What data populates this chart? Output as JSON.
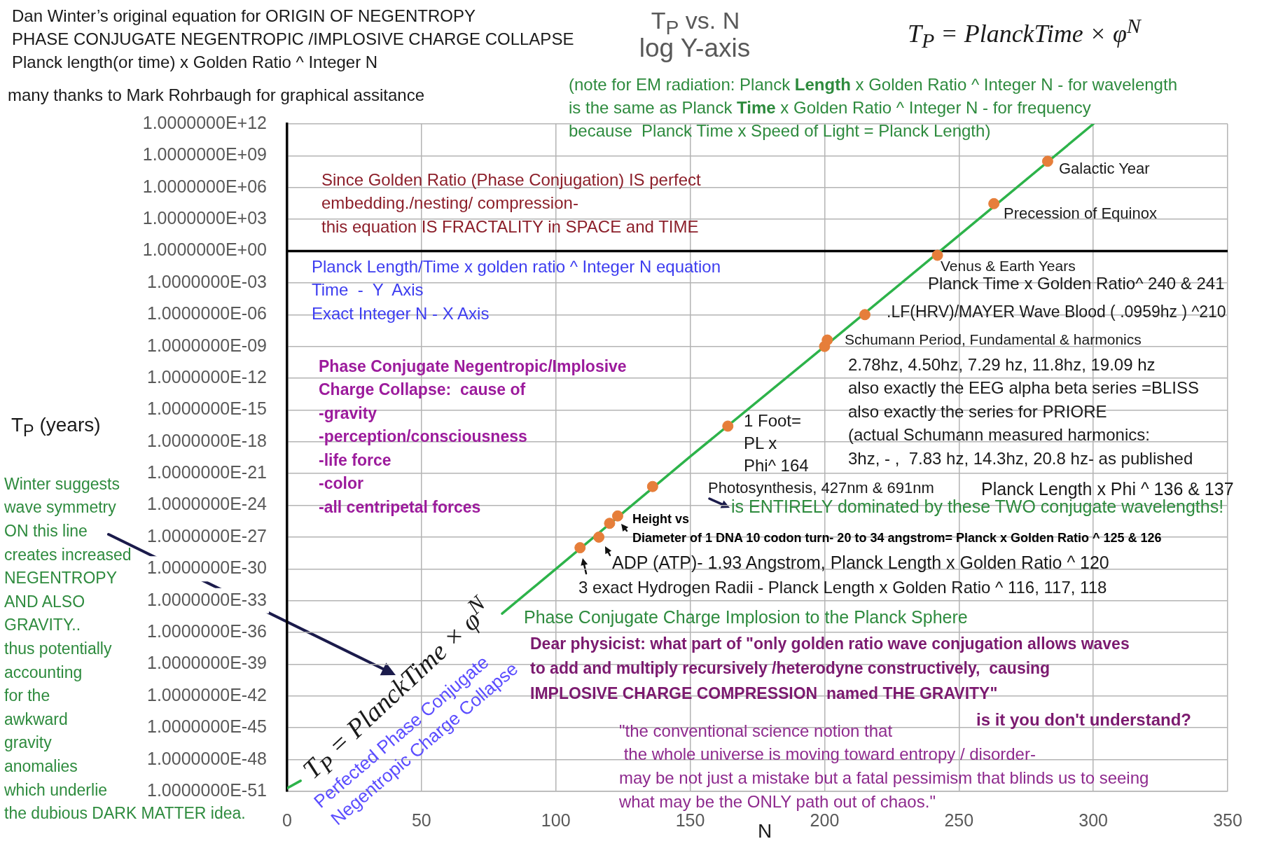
{
  "chart_data": {
    "type": "line",
    "title": "T$_{P}$ vs. N",
    "subtitle": "log Y-axis",
    "xlabel": "N",
    "ylabel": "T$_{P}$ (years)",
    "log": "y",
    "grid": true,
    "xlim": [
      0,
      350
    ],
    "xticks": [
      0,
      50,
      100,
      150,
      200,
      250,
      300,
      350
    ],
    "ylim": [
      1e-51,
      1000000000000.0
    ],
    "yticks": [
      {
        "value": 1000000000000.0,
        "label": "1.0000000E+12"
      },
      {
        "value": 1000000000.0,
        "label": "1.0000000E+09"
      },
      {
        "value": 1000000.0,
        "label": "1.0000000E+06"
      },
      {
        "value": 1000.0,
        "label": "1.0000000E+03"
      },
      {
        "value": 1,
        "label": "1.0000000E+00"
      },
      {
        "value": 0.001,
        "label": "1.0000000E-03"
      },
      {
        "value": 1e-06,
        "label": "1.0000000E-06"
      },
      {
        "value": 1e-09,
        "label": "1.0000000E-09"
      },
      {
        "value": 1e-12,
        "label": "1.0000000E-12"
      },
      {
        "value": 1e-15,
        "label": "1.0000000E-15"
      },
      {
        "value": 1e-18,
        "label": "1.0000000E-18"
      },
      {
        "value": 1e-21,
        "label": "1.0000000E-21"
      },
      {
        "value": 1e-24,
        "label": "1.0000000E-24"
      },
      {
        "value": 1e-27,
        "label": "1.0000000E-27"
      },
      {
        "value": 1e-30,
        "label": "1.0000000E-30"
      },
      {
        "value": 1e-33,
        "label": "1.0000000E-33"
      },
      {
        "value": 1e-36,
        "label": "1.0000000E-36"
      },
      {
        "value": 1e-39,
        "label": "1.0000000E-39"
      },
      {
        "value": 1e-42,
        "label": "1.0000000E-42"
      },
      {
        "value": 1e-45,
        "label": "1.0000000E-45"
      },
      {
        "value": 1e-48,
        "label": "1.0000000E-48"
      },
      {
        "value": 1e-51,
        "label": "1.0000000E-51"
      }
    ],
    "ref_lines": [
      {
        "axis": "y",
        "value": 1,
        "color": "#000000"
      }
    ],
    "series": [
      {
        "color": "#2db34a",
        "marker": "none",
        "x": [
          0,
          5,
          40,
          80,
          100,
          150,
          200,
          250,
          300
        ],
        "values": [
          2e-51,
          1e-50,
          null,
          6e-35,
          1e-30,
          4e-20,
          1e-09,
          30,
          1000000000000.0
        ]
      },
      {
        "type": "scatter",
        "color": "#e67e3a",
        "marker": "circle",
        "x": [
          109,
          116,
          120,
          123,
          136,
          164,
          200,
          201,
          215,
          242,
          263,
          283
        ],
        "values": [
          1e-28,
          1e-27,
          2e-26,
          1e-25,
          6e-23,
          3e-17,
          1e-09,
          4e-09,
          1e-06,
          0.4,
          30000.0,
          300000000.0
        ]
      }
    ],
    "annotations": [
      "Dan Winter’s original equation for ORIGIN OF NEGENTROPY",
      "PHASE CONJUGATE NEGENTROPIC /IMPLOSIVE CHARGE COLLAPSE",
      "Planck length(or time) x Golden Ratio ^ Integer N",
      "many thanks to Mark Rohrbaugh for graphical assitance",
      "T$_{P}$ = PlanckTime × φ$^{N}$",
      "(note for EM radiation: Planck ",
      "Length",
      " x Golden Ratio ^ Integer N - for wavelength",
      "is the same as Planck ",
      "Time",
      " x Golden Ratio ^ Integer N - for frequency",
      "because  Planck Time x Speed of Light = Planck Length)",
      "Since Golden Ratio (Phase Conjugation) IS perfect",
      "embedding./nesting/ compression-",
      "this equation IS FRACTALITY in SPACE and TIME",
      "Planck Length/Time x golden ratio ^ Integer N equation",
      "Time  -  Y  Axis",
      "Exact Integer N - X Axis",
      "Phase Conjugate Negentropic/Implosive",
      "Charge Collapse:  cause of",
      "-gravity",
      "-perception/consciousness",
      "-life force",
      "-color",
      "-all centripetal forces",
      "Galactic Year",
      "Precession of Equinox",
      "Venus & Earth Years",
      "Planck Time x Golden Ratio^ 240 & 241",
      ".LF(HRV)/MAYER Wave Blood ( .0959hz ) ^210",
      "Schumann Period, Fundamental & harmonics",
      "2.78hz, 4.50hz, 7.29 hz, 11.8hz, 19.09 hz",
      "also exactly the EEG alpha beta series =BLISS",
      "also exactly the series for PRIORE",
      "(actual Schumann measured harmonics:",
      "3hz, - ,  7.83 hz, 14.3hz, 20.8 hz- as published",
      "1 Foot=",
      "PL x",
      "Phi^ 164",
      "Photosynthesis, 427nm & 691nm",
      "Planck Length x Phi ^ 136 & 137",
      "is ENTIRELY dominated by these TWO conjugate wavelengths!",
      "Height vs",
      "Diameter of 1 DNA 10 codon turn- 20 to 34 angstrom= Planck x Golden Ratio ^ 125 & 126",
      "ADP (ATP)- 1.93 Angstrom, Planck Length x Golden Ratio ^ 120",
      "3 exact Hydrogen Radii - Planck Length x Golden Ratio ^ 116, 117, 118",
      "Phase Conjugate Charge Implosion to the Planck Sphere",
      "Dear physicist: what part of \"only golden ratio wave conjugation allows waves",
      "to add and multiply recursively /heterodyne constructively,  causing",
      "IMPLOSIVE CHARGE COMPRESSION  named THE GRAVITY\"",
      "is it you don't understand?",
      "\"the conventional science notion that",
      " the whole universe is moving toward entropy / disorder-",
      "may be not just a mistake but a fatal pessimism that blinds us to seeing",
      "what may be the ONLY path out of chaos.\"",
      "Winter suggests",
      "wave symmetry",
      "ON this line",
      "creates increased",
      "NEGENTROPY",
      "AND ALSO",
      "GRAVITY..",
      "thus potentially",
      "accounting",
      "for the",
      "awkward",
      "gravity",
      "anomalies",
      "which underlie",
      "the dubious DARK MATTER idea.",
      "T$_{P}$ = PlanckTime × φ$^{N}$",
      "Perfected Phase Conjugate",
      "Negentropic Charge Collapse"
    ]
  }
}
